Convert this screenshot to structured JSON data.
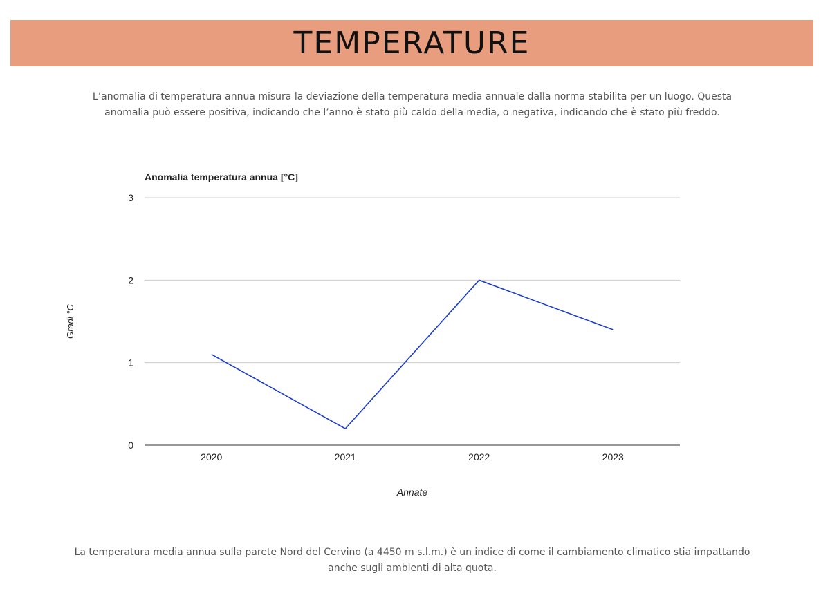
{
  "header": {
    "title": "TEMPERATURE",
    "color": "#e89e7e"
  },
  "intro_text": "L’anomalia di temperatura annua misura la deviazione della temperatura media annuale dalla norma stabilita per un luogo. Questa anomalia può essere positiva, indicando che l’anno è stato più caldo della media, o negativa, indicando che è stato più freddo.",
  "chart_data": {
    "type": "line",
    "title": "Anomalia temperatura annua [°C]",
    "xlabel": "Annate",
    "ylabel": "Gradi °C",
    "categories": [
      "2020",
      "2021",
      "2022",
      "2023"
    ],
    "series": [
      {
        "values": [
          1.1,
          0.2,
          2.0,
          1.4
        ],
        "color": "#1a3ccc"
      }
    ],
    "ylim": [
      0,
      3
    ],
    "yticks": [
      "0",
      "1",
      "2",
      "3"
    ],
    "grid": true,
    "legend": "none"
  },
  "outro_text": "La temperatura media annua sulla parete Nord del Cervino (a 4450 m s.l.m.) è un indice di come il cambiamento climatico stia impattando anche sugli ambienti di alta quota."
}
